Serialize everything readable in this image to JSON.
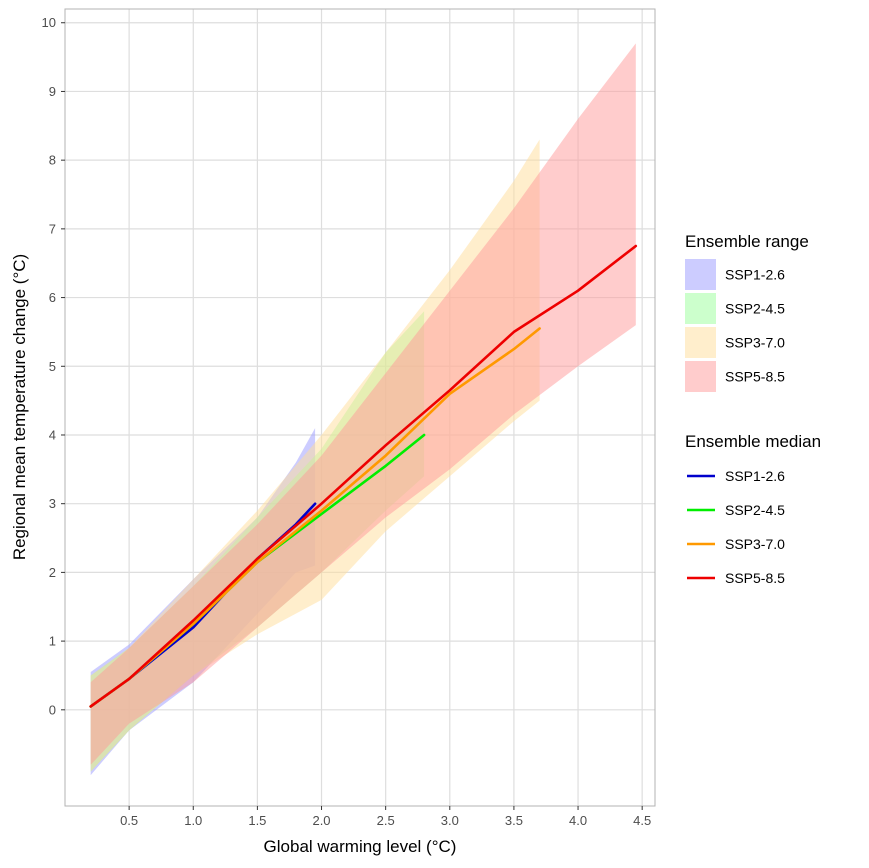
{
  "chart_data": {
    "type": "line",
    "title": "",
    "xlabel": "Global warming level (°C)",
    "ylabel": "Regional mean temperature change (°C)",
    "xlim": [
      0.0,
      4.6
    ],
    "ylim": [
      -1.4,
      10.2
    ],
    "x_ticks": [
      0.5,
      1.0,
      1.5,
      2.0,
      2.5,
      3.0,
      3.5,
      4.0,
      4.5
    ],
    "x_tick_labels": [
      "0.5",
      "1.0",
      "1.5",
      "2.0",
      "2.5",
      "3.0",
      "3.5",
      "4.0",
      "4.5"
    ],
    "y_ticks": [
      0,
      1,
      2,
      3,
      4,
      5,
      6,
      7,
      8,
      9,
      10
    ],
    "y_tick_labels": [
      "0",
      "1",
      "2",
      "3",
      "4",
      "5",
      "6",
      "7",
      "8",
      "9",
      "10"
    ],
    "grid": true,
    "legend_position": "right",
    "legend_range_title": "Ensemble range",
    "legend_median_title": "Ensemble median",
    "series": [
      {
        "name": "SSP1-2.6",
        "color": "#0000cc",
        "fill_color": "#9999ff",
        "range_x": [
          0.2,
          0.5,
          1.0,
          1.5,
          1.8,
          1.95
        ],
        "range_lower": [
          -0.95,
          -0.3,
          0.4,
          1.4,
          2.0,
          2.1
        ],
        "range_upper": [
          0.55,
          0.95,
          1.9,
          2.8,
          3.6,
          4.1
        ],
        "median_x": [
          0.2,
          0.5,
          1.0,
          1.5,
          1.8,
          1.95
        ],
        "median_y": [
          0.05,
          0.45,
          1.2,
          2.2,
          2.7,
          3.0
        ]
      },
      {
        "name": "SSP2-4.5",
        "color": "#00ee00",
        "fill_color": "#99ff99",
        "range_x": [
          0.2,
          0.5,
          1.0,
          1.5,
          2.0,
          2.5,
          2.8
        ],
        "range_lower": [
          -0.9,
          -0.3,
          0.5,
          1.2,
          2.0,
          2.9,
          3.4
        ],
        "range_upper": [
          0.5,
          0.9,
          1.8,
          2.8,
          3.8,
          5.2,
          5.8
        ],
        "median_x": [
          0.2,
          0.5,
          1.0,
          1.5,
          2.0,
          2.5,
          2.8
        ],
        "median_y": [
          0.05,
          0.45,
          1.25,
          2.15,
          2.85,
          3.55,
          4.0
        ]
      },
      {
        "name": "SSP3-7.0",
        "color": "#ff9900",
        "fill_color": "#ffdd99",
        "range_x": [
          0.2,
          0.5,
          1.0,
          1.5,
          2.0,
          2.5,
          3.0,
          3.5,
          3.7
        ],
        "range_lower": [
          -0.9,
          -0.3,
          0.5,
          1.1,
          1.6,
          2.6,
          3.4,
          4.2,
          4.5
        ],
        "range_upper": [
          0.5,
          0.9,
          1.9,
          2.9,
          4.0,
          5.2,
          6.4,
          7.7,
          8.3
        ],
        "median_x": [
          0.2,
          0.5,
          1.0,
          1.5,
          2.0,
          2.5,
          3.0,
          3.5,
          3.7
        ],
        "median_y": [
          0.05,
          0.45,
          1.25,
          2.15,
          2.9,
          3.7,
          4.6,
          5.25,
          5.55
        ]
      },
      {
        "name": "SSP5-8.5",
        "color": "#ee0000",
        "fill_color": "#ff9999",
        "range_x": [
          0.2,
          0.5,
          1.0,
          1.5,
          2.0,
          2.5,
          3.0,
          3.5,
          4.0,
          4.45
        ],
        "range_lower": [
          -0.8,
          -0.2,
          0.4,
          1.2,
          2.0,
          2.8,
          3.5,
          4.3,
          5.0,
          5.6
        ],
        "range_upper": [
          0.4,
          0.9,
          1.8,
          2.7,
          3.7,
          4.9,
          6.1,
          7.3,
          8.6,
          9.7
        ],
        "median_x": [
          0.2,
          0.5,
          1.0,
          1.5,
          2.0,
          2.5,
          3.0,
          3.5,
          4.0,
          4.45
        ],
        "median_y": [
          0.05,
          0.45,
          1.3,
          2.2,
          3.0,
          3.85,
          4.65,
          5.5,
          6.1,
          6.75
        ]
      }
    ]
  }
}
